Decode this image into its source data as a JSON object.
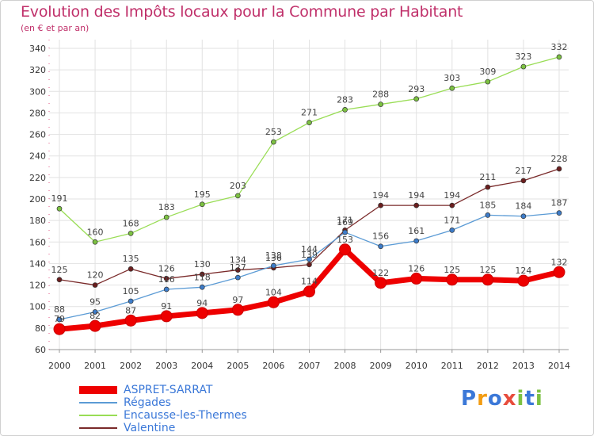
{
  "title": "Evolution des Impôts locaux pour la Commune par Habitant",
  "subtitle": "(en € et par an)",
  "logo": {
    "letters": [
      "P",
      "r",
      "o",
      "x",
      "i",
      "t",
      "i"
    ],
    "colors": [
      "#3b78d8",
      "#f39c12",
      "#3b78d8",
      "#e74c3c",
      "#7cc142",
      "#3b78d8",
      "#7cc142"
    ]
  },
  "chart_data": {
    "type": "line",
    "x": [
      "2000",
      "2001",
      "2002",
      "2003",
      "2004",
      "2005",
      "2006",
      "2007",
      "2008",
      "2009",
      "2010",
      "2011",
      "2012",
      "2013",
      "2014"
    ],
    "ylim": [
      60,
      340
    ],
    "yticks": [
      "60",
      "80",
      "100",
      "120",
      "140",
      "160",
      "180",
      "200",
      "220",
      "240",
      "260",
      "280",
      "300",
      "320",
      "340"
    ],
    "grid": true,
    "legend_position": "bottom-left",
    "series": [
      {
        "name": "Encausse-les-Thermes",
        "color": "#99dd55",
        "marker": "#7cc142",
        "values": [
          191,
          160,
          168,
          183,
          195,
          203,
          253,
          271,
          283,
          288,
          293,
          303,
          309,
          323,
          332
        ],
        "labels": [
          "191",
          "160",
          "168",
          "183",
          "195",
          "203",
          "253",
          "271",
          "283",
          "288",
          "293",
          "303",
          "309",
          "323",
          "332"
        ]
      },
      {
        "name": "Valentine",
        "color": "#7a2a2a",
        "marker": "#6b1e1e",
        "values": [
          125,
          120,
          135,
          126,
          130,
          134,
          136,
          139,
          171,
          194,
          194,
          194,
          211,
          217,
          228
        ],
        "labels": [
          "125",
          "120",
          "135",
          "126",
          "130",
          "134",
          "136",
          "139",
          "171",
          "194",
          "194",
          "194",
          "211",
          "217",
          "228"
        ]
      },
      {
        "name": "Régades",
        "color": "#5b9bd5",
        "marker": "#3d7cc9",
        "values": [
          88,
          95,
          105,
          116,
          118,
          127,
          138,
          144,
          169,
          156,
          161,
          171,
          185,
          184,
          187
        ],
        "labels": [
          "88",
          "95",
          "105",
          "116",
          "118",
          "127",
          "138",
          "144",
          "169",
          "156",
          "161",
          "171",
          "185",
          "184",
          "187"
        ]
      },
      {
        "name": "ASPRET-SARRAT",
        "color": "#ee0000",
        "marker": "#ee0000",
        "values": [
          79,
          82,
          87,
          91,
          94,
          97,
          104,
          114,
          153,
          122,
          126,
          125,
          125,
          124,
          132
        ],
        "labels": [
          "79",
          "82",
          "87",
          "91",
          "94",
          "97",
          "104",
          "114",
          "153",
          "122",
          "126",
          "125",
          "125",
          "124",
          "132"
        ]
      }
    ],
    "legend": [
      {
        "name": "ASPRET-SARRAT",
        "color": "#ee0000",
        "thick": true
      },
      {
        "name": "Régades",
        "color": "#5b9bd5",
        "thick": false
      },
      {
        "name": "Encausse-les-Thermes",
        "color": "#99dd55",
        "thick": false
      },
      {
        "name": "Valentine",
        "color": "#7a2a2a",
        "thick": false
      }
    ]
  }
}
